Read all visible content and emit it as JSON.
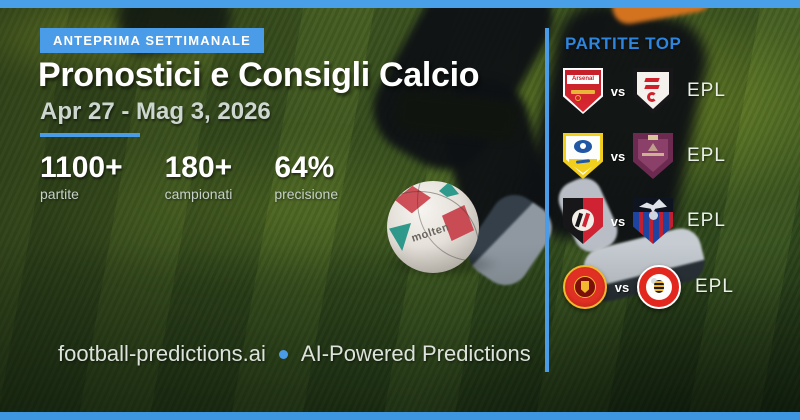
{
  "header": {
    "badge": "ANTEPRIMA SETTIMANALE",
    "title": "Pronostici e Consigli Calcio",
    "subtitle": "Apr 27 - Mag 3, 2026"
  },
  "stats": [
    {
      "value": "1100+",
      "label": "partite"
    },
    {
      "value": "180+",
      "label": "campionati"
    },
    {
      "value": "64%",
      "label": "precisione"
    }
  ],
  "sidebar": {
    "title": "PARTITE TOP",
    "matches": [
      {
        "home": "Arsenal",
        "away": "Fulham",
        "vs_label": "vs",
        "league": "EPL"
      },
      {
        "home": "Leeds United",
        "away": "Burnley",
        "vs_label": "vs",
        "league": "EPL"
      },
      {
        "home": "Bournemouth",
        "away": "Crystal Palace",
        "vs_label": "vs",
        "league": "EPL"
      },
      {
        "home": "Manchester United",
        "away": "Brentford",
        "vs_label": "vs",
        "league": "EPL"
      }
    ]
  },
  "footer": {
    "site": "football-predictions.ai",
    "separator": "•",
    "tagline": "AI-Powered Predictions"
  },
  "background": {
    "ball_brand": "molten"
  },
  "colors": {
    "accent_blue": "#4a9ce8",
    "top_bar_blue": "#4aa0e8",
    "bottom_bar_blue": "#3f96e0",
    "sidebar_title_blue": "#2d85de",
    "subtitle_gray": "#cdd7d0",
    "grass_dark": "#203617",
    "grass_light": "#7a9426"
  }
}
